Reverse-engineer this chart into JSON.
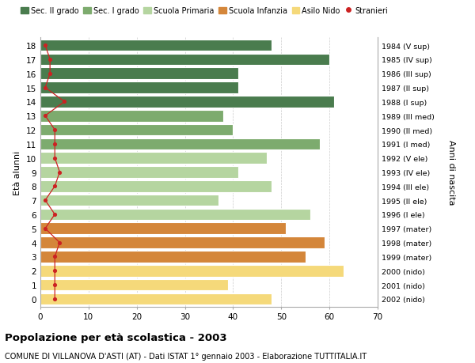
{
  "ages": [
    18,
    17,
    16,
    15,
    14,
    13,
    12,
    11,
    10,
    9,
    8,
    7,
    6,
    5,
    4,
    3,
    2,
    1,
    0
  ],
  "right_labels": [
    "1984 (V sup)",
    "1985 (IV sup)",
    "1986 (III sup)",
    "1987 (II sup)",
    "1988 (I sup)",
    "1989 (III med)",
    "1990 (II med)",
    "1991 (I med)",
    "1992 (V ele)",
    "1993 (IV ele)",
    "1994 (III ele)",
    "1995 (II ele)",
    "1996 (I ele)",
    "1997 (mater)",
    "1998 (mater)",
    "1999 (mater)",
    "2000 (nido)",
    "2001 (nido)",
    "2002 (nido)"
  ],
  "bar_values": [
    48,
    60,
    41,
    41,
    61,
    38,
    40,
    58,
    47,
    41,
    48,
    37,
    56,
    51,
    59,
    55,
    63,
    39,
    48
  ],
  "bar_colors": [
    "#4a7c4e",
    "#4a7c4e",
    "#4a7c4e",
    "#4a7c4e",
    "#4a7c4e",
    "#7dab6e",
    "#7dab6e",
    "#7dab6e",
    "#b5d5a0",
    "#b5d5a0",
    "#b5d5a0",
    "#b5d5a0",
    "#b5d5a0",
    "#d4863a",
    "#d4863a",
    "#d4863a",
    "#f5d97a",
    "#f5d97a",
    "#f5d97a"
  ],
  "stranieri_values": [
    1,
    2,
    2,
    1,
    5,
    1,
    3,
    3,
    3,
    4,
    3,
    1,
    3,
    1,
    4,
    3,
    3,
    3,
    3
  ],
  "stranieri_color": "#cc2222",
  "legend_labels": [
    "Sec. II grado",
    "Sec. I grado",
    "Scuola Primaria",
    "Scuola Infanzia",
    "Asilo Nido",
    "Stranieri"
  ],
  "legend_colors": [
    "#4a7c4e",
    "#7dab6e",
    "#b5d5a0",
    "#d4863a",
    "#f5d97a",
    "#cc2222"
  ],
  "ylabel": "Età alunni",
  "right_ylabel": "Anni di nascita",
  "title": "Popolazione per età scolastica - 2003",
  "subtitle": "COMUNE DI VILLANOVA D'ASTI (AT) - Dati ISTAT 1° gennaio 2003 - Elaborazione TUTTITALIA.IT",
  "xlim": [
    0,
    70
  ],
  "xticks": [
    0,
    10,
    20,
    30,
    40,
    50,
    60,
    70
  ],
  "bg_color": "#ffffff",
  "grid_color": "#cccccc"
}
